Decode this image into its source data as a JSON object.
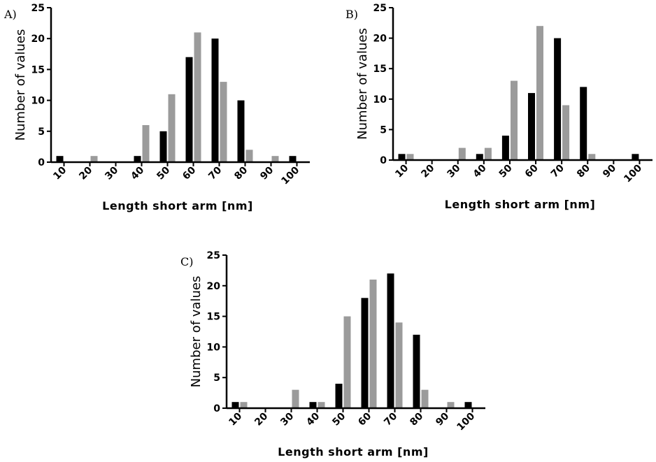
{
  "chart_data": [
    {
      "type": "bar",
      "panel_label": "A)",
      "categories": [
        "10",
        "20",
        "30",
        "40",
        "50",
        "60",
        "70",
        "80",
        "90",
        "100"
      ],
      "series": [
        {
          "color": "#000000",
          "values": [
            1,
            0,
            0,
            1,
            5,
            17,
            20,
            10,
            0,
            1
          ]
        },
        {
          "color": "#9b9b9b",
          "values": [
            0,
            1,
            0,
            6,
            11,
            21,
            13,
            2,
            1,
            0
          ]
        }
      ],
      "xlabel": "Length short arm [nm]",
      "ylabel": "Number of values",
      "ylim": [
        0,
        25
      ],
      "yticks": [
        "0",
        "5",
        "10",
        "15",
        "20",
        "25"
      ],
      "grid": false
    },
    {
      "type": "bar",
      "panel_label": "B)",
      "categories": [
        "10",
        "20",
        "30",
        "40",
        "50",
        "60",
        "70",
        "80",
        "90",
        "100"
      ],
      "series": [
        {
          "color": "#000000",
          "values": [
            1,
            0,
            0,
            1,
            4,
            11,
            20,
            12,
            0,
            1
          ]
        },
        {
          "color": "#9b9b9b",
          "values": [
            1,
            0,
            2,
            2,
            13,
            22,
            9,
            1,
            0,
            0
          ]
        }
      ],
      "xlabel": "Length short arm [nm]",
      "ylabel": "Number of values",
      "ylim": [
        0,
        25
      ],
      "yticks": [
        "0",
        "5",
        "10",
        "15",
        "20",
        "25"
      ],
      "grid": false
    },
    {
      "type": "bar",
      "panel_label": "C)",
      "categories": [
        "10",
        "20",
        "30",
        "40",
        "50",
        "60",
        "70",
        "80",
        "90",
        "100"
      ],
      "series": [
        {
          "color": "#000000",
          "values": [
            1,
            0,
            0,
            1,
            4,
            18,
            22,
            12,
            0,
            1
          ]
        },
        {
          "color": "#9b9b9b",
          "values": [
            1,
            0,
            3,
            1,
            15,
            21,
            14,
            3,
            1,
            0
          ]
        }
      ],
      "xlabel": "Length short arm [nm]",
      "ylabel": "Number of values",
      "ylim": [
        0,
        25
      ],
      "yticks": [
        "0",
        "5",
        "10",
        "15",
        "20",
        "25"
      ],
      "grid": false
    }
  ]
}
